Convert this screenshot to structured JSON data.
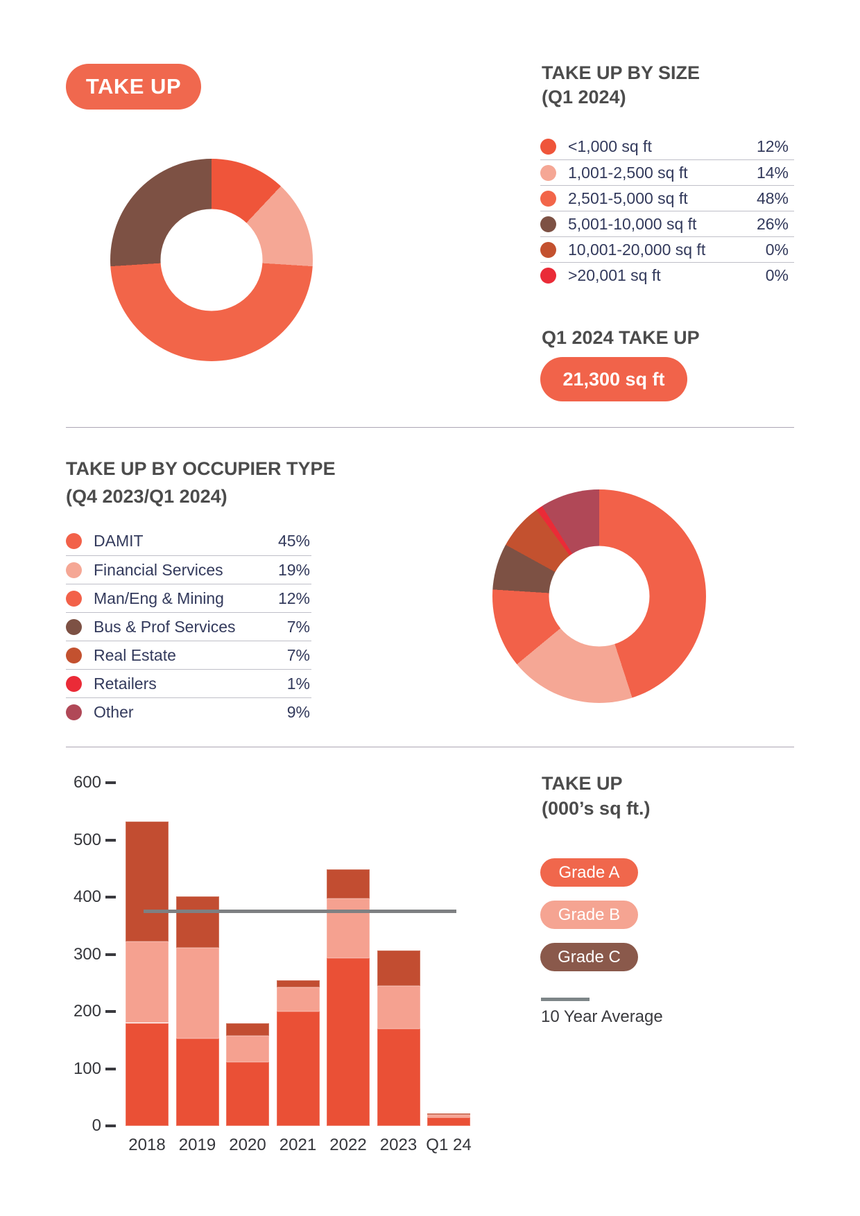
{
  "header": {
    "badge": "TAKE UP"
  },
  "size_section": {
    "title_line1": "TAKE UP BY SIZE",
    "title_line2": "(Q1 2024)",
    "subheading": "Q1 2024 TAKE UP",
    "total_badge": "21,300 sq ft"
  },
  "occupier_section": {
    "title_line1": "TAKE UP BY OCCUPIER TYPE",
    "title_line2": "(Q4 2023/Q1 2024)"
  },
  "bar_section": {
    "title_line1": "TAKE UP",
    "title_line2": "(000’s sq ft.)",
    "pill_colors": [
      "#F0674C",
      "#F5A492",
      "#8A594B"
    ],
    "avg_label": "10 Year Average"
  },
  "colors": {
    "primary_orange": "#F1634A",
    "badge_orange": "#F0684E",
    "navy_text": "#333A5C",
    "heading_gray": "#4C4C4C",
    "section_divider": "#ACA6B4",
    "row_divider": "#BFBFC8"
  },
  "chart_data": [
    {
      "type": "pie",
      "donut": true,
      "title": "TAKE UP BY SIZE (Q1 2024)",
      "legend_position": "right",
      "slices": [
        {
          "label": "<1,000 sq ft",
          "value": 12,
          "color": "#EF553A"
        },
        {
          "label": "1,001-2,500 sq ft",
          "value": 14,
          "color": "#F5A795"
        },
        {
          "label": "2,501-5,000 sq ft",
          "value": 48,
          "color": "#F26549"
        },
        {
          "label": "5,001-10,000 sq ft",
          "value": 26,
          "color": "#7D5144"
        },
        {
          "label": "10,001-20,000 sq ft",
          "value": 0,
          "color": "#C3512F"
        },
        {
          "label": ">20,001 sq ft",
          "value": 0,
          "color": "#EA2B37"
        }
      ]
    },
    {
      "type": "pie",
      "donut": true,
      "title": "TAKE UP BY OCCUPIER TYPE (Q4 2023/Q1 2024)",
      "legend_position": "left",
      "slices": [
        {
          "label": "DAMIT",
          "value": 45,
          "color": "#F26149"
        },
        {
          "label": "Financial Services",
          "value": 19,
          "color": "#F5A795"
        },
        {
          "label": "Man/Eng & Mining",
          "value": 12,
          "color": "#F26149"
        },
        {
          "label": "Bus & Prof Services",
          "value": 7,
          "color": "#7D5144"
        },
        {
          "label": "Real Estate",
          "value": 7,
          "color": "#C3512F"
        },
        {
          "label": "Retailers",
          "value": 1,
          "color": "#EA2B37"
        },
        {
          "label": "Other",
          "value": 9,
          "color": "#B04857"
        }
      ]
    },
    {
      "type": "bar",
      "stacked": true,
      "title": "TAKE UP (000's sq ft.)",
      "ylabel": "000's sq ft",
      "ylim": [
        0,
        600
      ],
      "yticks": [
        600,
        500,
        400,
        300,
        200,
        100,
        0
      ],
      "grid": false,
      "categories": [
        "2018",
        "2019",
        "2020",
        "2021",
        "2022",
        "2023",
        "Q1 24"
      ],
      "series": [
        {
          "name": "Grade A",
          "color": "#EA5036",
          "values": [
            180,
            153,
            112,
            200,
            293,
            170,
            15
          ]
        },
        {
          "name": "Grade B",
          "color": "#F5A190",
          "values": [
            142,
            158,
            46,
            42,
            105,
            75,
            4
          ]
        },
        {
          "name": "Grade C",
          "color": "#C24D31",
          "values": [
            210,
            90,
            22,
            13,
            50,
            62,
            3
          ]
        }
      ],
      "totals": [
        532,
        401,
        180,
        255,
        448,
        307,
        22
      ],
      "avg_line": {
        "label": "10 Year Average",
        "value": 375,
        "color": "#7E8082"
      }
    }
  ]
}
